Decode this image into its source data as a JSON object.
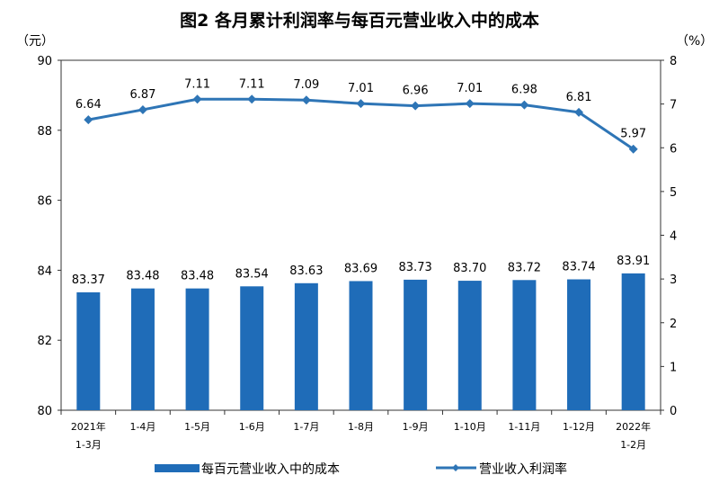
{
  "chart_data": {
    "type": "bar+line",
    "title": "图2  各月累计利润率与每百元营业收入中的成本",
    "categories": [
      [
        "2021年",
        "1-3月"
      ],
      [
        "1-4月"
      ],
      [
        "1-5月"
      ],
      [
        "1-6月"
      ],
      [
        "1-7月"
      ],
      [
        "1-8月"
      ],
      [
        "1-9月"
      ],
      [
        "1-10月"
      ],
      [
        "1-11月"
      ],
      [
        "1-12月"
      ],
      [
        "2022年",
        "1-2月"
      ]
    ],
    "y_left": {
      "unit_label": "（元）",
      "range": [
        80,
        90
      ],
      "ticks": [
        80,
        82,
        84,
        86,
        88,
        90
      ]
    },
    "y_right": {
      "unit_label": "（%）",
      "range": [
        0,
        8
      ],
      "ticks": [
        0,
        1,
        2,
        3,
        4,
        5,
        6,
        7,
        8
      ]
    },
    "grid": false,
    "legend_placement": "bottom",
    "series": [
      {
        "name": "每百元营业收入中的成本",
        "type": "bar",
        "axis": "left",
        "color": "#1f6cb8",
        "values": [
          83.37,
          83.48,
          83.48,
          83.54,
          83.63,
          83.69,
          83.73,
          83.7,
          83.72,
          83.74,
          83.91
        ],
        "labels": [
          "83.37",
          "83.48",
          "83.48",
          "83.54",
          "83.63",
          "83.69",
          "83.73",
          "83.70",
          "83.72",
          "83.74",
          "83.91"
        ]
      },
      {
        "name": "营业收入利润率",
        "type": "line",
        "axis": "right",
        "color": "#2e75b6",
        "values": [
          6.64,
          6.87,
          7.11,
          7.11,
          7.09,
          7.01,
          6.96,
          7.01,
          6.98,
          6.81,
          5.97
        ],
        "labels": [
          "6.64",
          "6.87",
          "7.11",
          "7.11",
          "7.09",
          "7.01",
          "6.96",
          "7.01",
          "6.98",
          "6.81",
          "5.97"
        ]
      }
    ]
  }
}
